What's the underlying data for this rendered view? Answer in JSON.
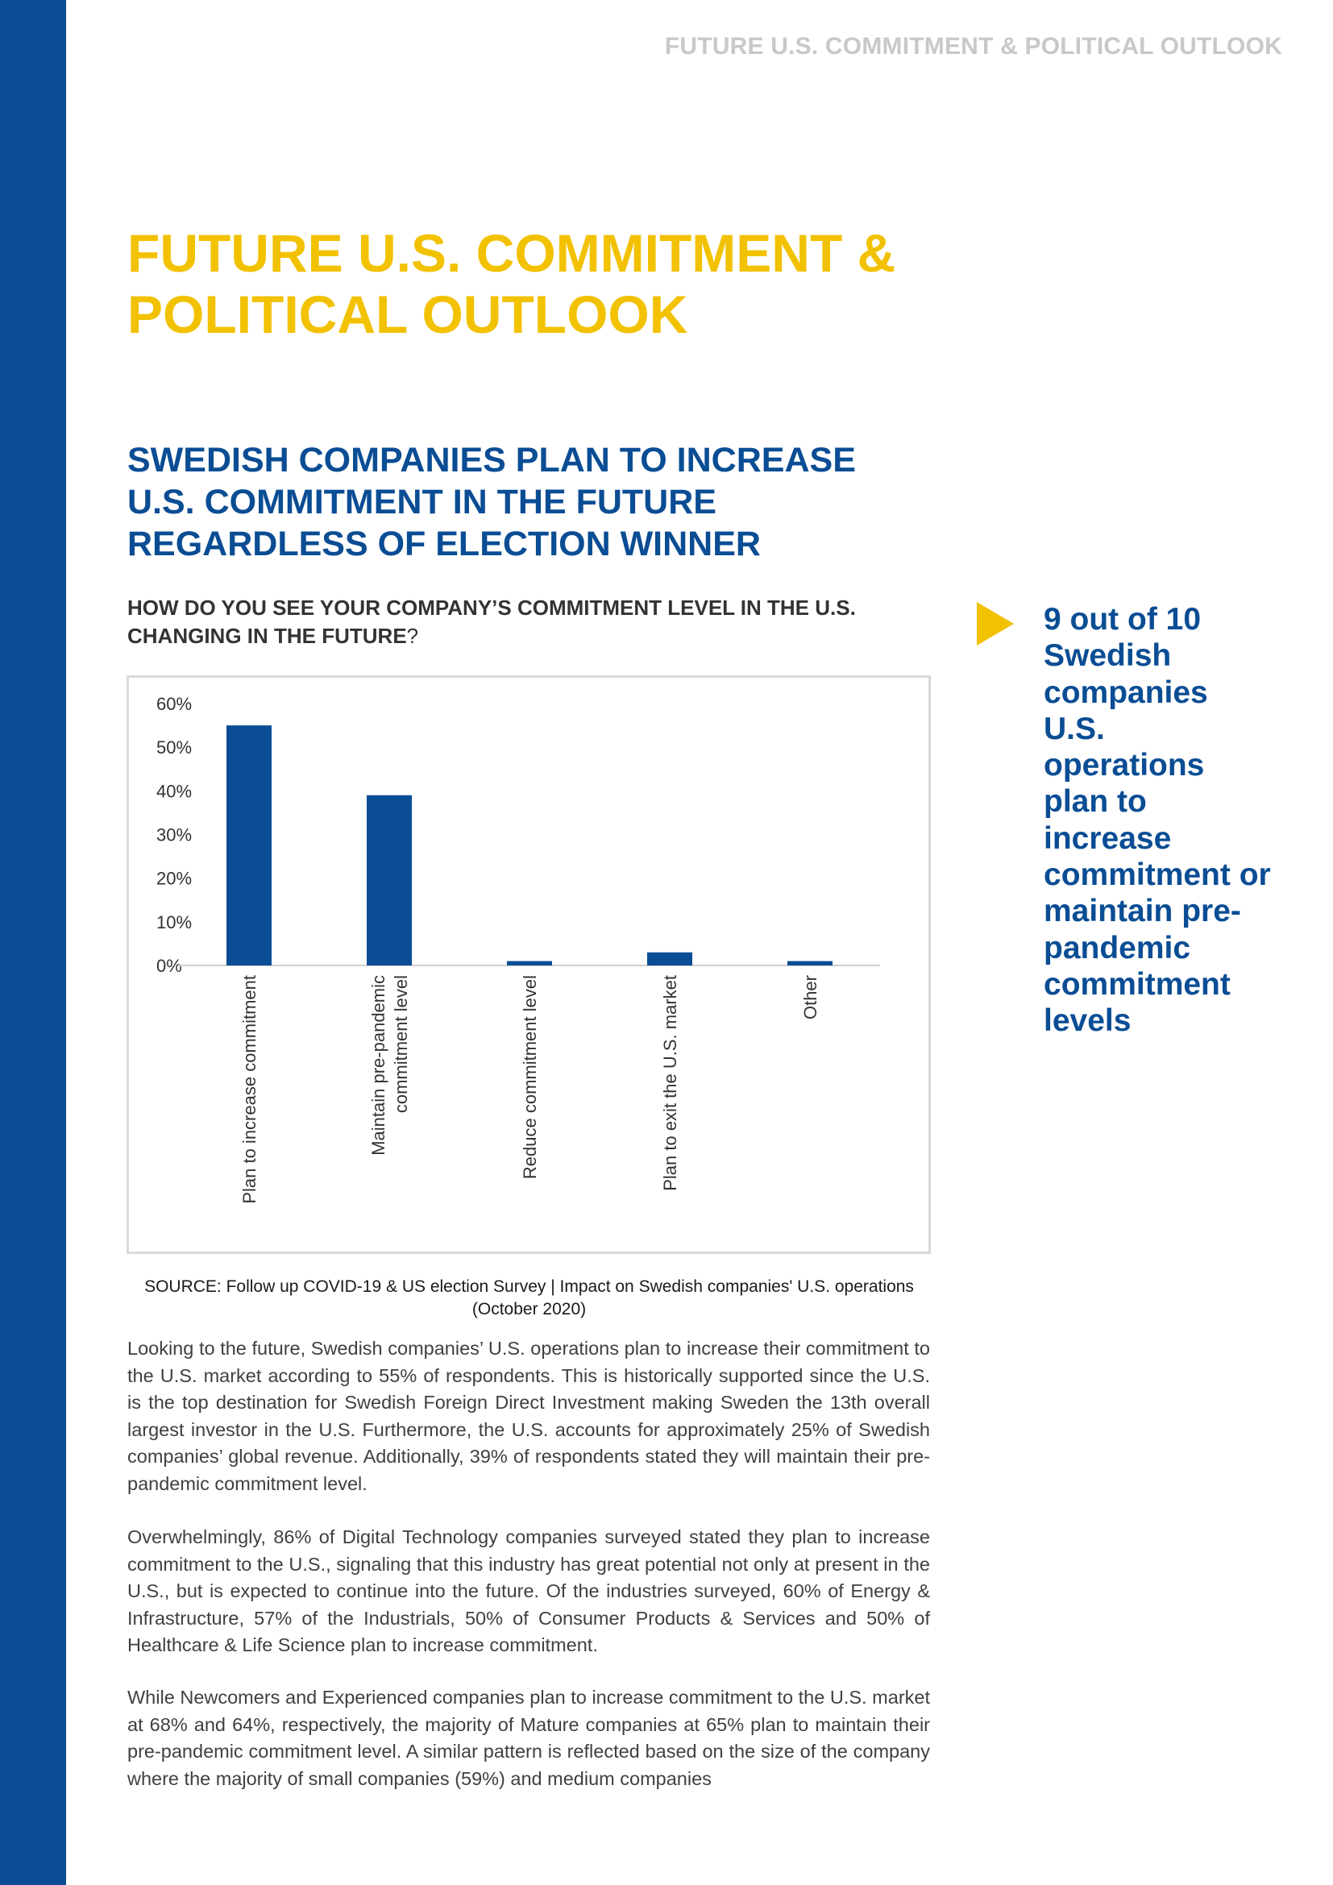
{
  "header": {
    "running_title": "FUTURE U.S. COMMITMENT & POLITICAL OUTLOOK"
  },
  "title": {
    "lines": [
      "FUTURE U.S. COMMITMENT &",
      "POLITICAL OUTLOOK"
    ]
  },
  "section": {
    "heading_lines": [
      "SWEDISH COMPANIES PLAN TO INCREASE",
      "U.S. COMMITMENT IN THE FUTURE",
      "REGARDLESS OF ELECTION WINNER"
    ],
    "question_text": "HOW DO YOU SEE YOUR COMPANY’S COMMITMENT LEVEL IN THE U.S. CHANGING IN THE FUTURE",
    "question_mark": "?"
  },
  "chart_data": {
    "type": "bar",
    "title": "",
    "xlabel": "",
    "ylabel": "",
    "categories": [
      [
        "Plan to increase commitment"
      ],
      [
        "Maintain pre-pandemic",
        "commitment level"
      ],
      [
        "Reduce commitment level"
      ],
      [
        "Plan to exit the U.S. market"
      ],
      [
        "Other"
      ]
    ],
    "values": [
      55,
      39,
      1,
      3,
      1
    ],
    "ylim": [
      0,
      60
    ],
    "yticks": [
      "0%",
      "10%",
      "20%",
      "30%",
      "40%",
      "50%",
      "60%"
    ],
    "ytick_values": [
      0,
      10,
      20,
      30,
      40,
      50,
      60
    ],
    "grid": false,
    "colors": {
      "bar": "#0a4d94",
      "axis": "#d0d0d0",
      "text": "#333333"
    }
  },
  "source": {
    "text": "SOURCE: Follow up COVID-19 & US election Survey | Impact on Swedish companies' U.S. operations (October 2020)"
  },
  "body": {
    "paragraph_1": "Looking to the future, Swedish companies’ U.S. operations plan to increase their commitment to the U.S. market according to 55% of respondents. This is historically supported since the U.S. is the top destination for Swedish Foreign Direct Investment making Sweden the 13th overall largest investor in the U.S. Furthermore, the U.S. accounts for approximately 25% of Swedish companies’ global revenue. Additionally, 39% of respondents stated they will maintain their pre-pandemic commitment level.",
    "paragraph_2": "Overwhelmingly, 86% of Digital Technology companies surveyed stated they plan to increase commitment to the U.S., signaling that this industry has great potential not only at present in the U.S., but is expected to continue into the future. Of the industries surveyed, 60% of Energy & Infrastructure, 57% of the Industrials, 50% of Consumer Products & Services and 50% of Healthcare & Life Science plan to increase commitment.",
    "paragraph_3": "While Newcomers and Experienced companies plan to increase commitment to the U.S. market at 68% and 64%, respectively, the majority of Mature companies at 65% plan to maintain their pre-pandemic commitment level. A similar pattern is reflected based on the size of the company where the majority of small companies (59%) and medium companies"
  },
  "callout": {
    "lines": [
      "9 out of 10",
      "Swedish",
      "companies",
      "U.S.",
      "operations",
      "plan to",
      "increase",
      "commitment or",
      "maintain pre-",
      "pandemic",
      "commitment",
      "levels"
    ]
  },
  "colors": {
    "brand_blue": "#0a4d94",
    "accent_yellow": "#f2c100",
    "header_gray": "#c8c8c8"
  }
}
